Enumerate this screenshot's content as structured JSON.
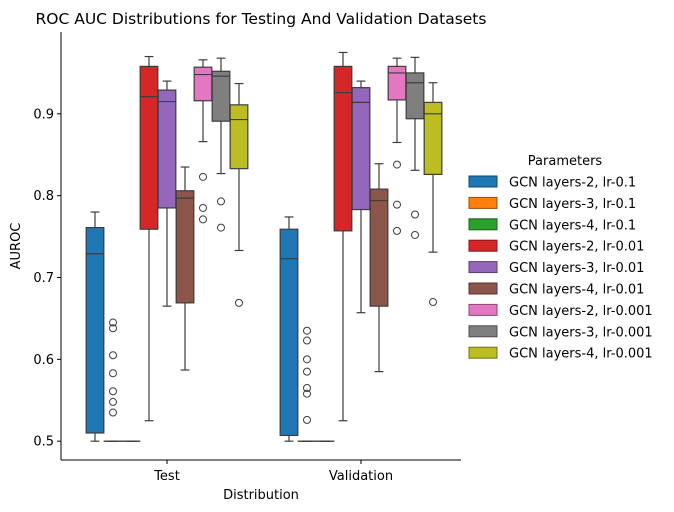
{
  "chart_data": {
    "type": "box",
    "title": "ROC AUC Distributions for Testing And Validation Datasets",
    "xlabel": "Distribution",
    "ylabel": "AUROC",
    "categories": [
      "Test",
      "Validation"
    ],
    "ylim": [
      0.477,
      1.0
    ],
    "yticks": [
      0.5,
      0.6,
      0.7,
      0.8,
      0.9
    ],
    "legend": {
      "title": "Parameters",
      "placement": "right"
    },
    "series": [
      {
        "name": "GCN layers-2, lr-0.1",
        "color": "#1f77b4",
        "boxes": [
          {
            "category": "Test",
            "whisker_low": 0.5,
            "q1": 0.51,
            "median": 0.729,
            "q3": 0.761,
            "whisker_high": 0.78,
            "outliers": []
          },
          {
            "category": "Validation",
            "whisker_low": 0.5,
            "q1": 0.507,
            "median": 0.723,
            "q3": 0.759,
            "whisker_high": 0.774,
            "outliers": []
          }
        ]
      },
      {
        "name": "GCN layers-3, lr-0.1",
        "color": "#ff7f0e",
        "boxes": [
          {
            "category": "Test",
            "whisker_low": 0.5,
            "q1": 0.5,
            "median": 0.5,
            "q3": 0.5,
            "whisker_high": 0.5,
            "outliers": [
              0.535,
              0.548,
              0.561,
              0.583,
              0.605,
              0.638,
              0.645
            ]
          },
          {
            "category": "Validation",
            "whisker_low": 0.5,
            "q1": 0.5,
            "median": 0.5,
            "q3": 0.5,
            "whisker_high": 0.5,
            "outliers": [
              0.526,
              0.558,
              0.565,
              0.585,
              0.6,
              0.623,
              0.635
            ]
          }
        ]
      },
      {
        "name": "GCN layers-4, lr-0.1",
        "color": "#2ca02c",
        "boxes": [
          {
            "category": "Test",
            "whisker_low": 0.5,
            "q1": 0.5,
            "median": 0.5,
            "q3": 0.5,
            "whisker_high": 0.5,
            "outliers": []
          },
          {
            "category": "Validation",
            "whisker_low": 0.5,
            "q1": 0.5,
            "median": 0.5,
            "q3": 0.5,
            "whisker_high": 0.5,
            "outliers": []
          }
        ]
      },
      {
        "name": "GCN layers-2, lr-0.01",
        "color": "#d62728",
        "boxes": [
          {
            "category": "Test",
            "whisker_low": 0.525,
            "q1": 0.759,
            "median": 0.921,
            "q3": 0.958,
            "whisker_high": 0.97,
            "outliers": []
          },
          {
            "category": "Validation",
            "whisker_low": 0.525,
            "q1": 0.757,
            "median": 0.926,
            "q3": 0.958,
            "whisker_high": 0.975,
            "outliers": []
          }
        ]
      },
      {
        "name": "GCN layers-3, lr-0.01",
        "color": "#9467bd",
        "boxes": [
          {
            "category": "Test",
            "whisker_low": 0.665,
            "q1": 0.785,
            "median": 0.915,
            "q3": 0.929,
            "whisker_high": 0.94,
            "outliers": []
          },
          {
            "category": "Validation",
            "whisker_low": 0.657,
            "q1": 0.783,
            "median": 0.914,
            "q3": 0.932,
            "whisker_high": 0.94,
            "outliers": []
          }
        ]
      },
      {
        "name": "GCN layers-4, lr-0.01",
        "color": "#8c564b",
        "boxes": [
          {
            "category": "Test",
            "whisker_low": 0.587,
            "q1": 0.669,
            "median": 0.797,
            "q3": 0.806,
            "whisker_high": 0.835,
            "outliers": []
          },
          {
            "category": "Validation",
            "whisker_low": 0.585,
            "q1": 0.665,
            "median": 0.794,
            "q3": 0.808,
            "whisker_high": 0.839,
            "outliers": []
          }
        ]
      },
      {
        "name": "GCN layers-2, lr-0.001",
        "color": "#e377c2",
        "boxes": [
          {
            "category": "Test",
            "whisker_low": 0.866,
            "q1": 0.916,
            "median": 0.948,
            "q3": 0.957,
            "whisker_high": 0.966,
            "outliers": [
              0.823,
              0.785,
              0.771
            ]
          },
          {
            "category": "Validation",
            "whisker_low": 0.865,
            "q1": 0.917,
            "median": 0.95,
            "q3": 0.958,
            "whisker_high": 0.968,
            "outliers": [
              0.838,
              0.789,
              0.757
            ]
          }
        ]
      },
      {
        "name": "GCN layers-3, lr-0.001",
        "color": "#7f7f7f",
        "boxes": [
          {
            "category": "Test",
            "whisker_low": 0.827,
            "q1": 0.891,
            "median": 0.946,
            "q3": 0.952,
            "whisker_high": 0.968,
            "outliers": [
              0.793,
              0.761
            ]
          },
          {
            "category": "Validation",
            "whisker_low": 0.831,
            "q1": 0.894,
            "median": 0.938,
            "q3": 0.95,
            "whisker_high": 0.969,
            "outliers": [
              0.777,
              0.752
            ]
          }
        ]
      },
      {
        "name": "GCN layers-4, lr-0.001",
        "color": "#bcbd22",
        "boxes": [
          {
            "category": "Test",
            "whisker_low": 0.733,
            "q1": 0.833,
            "median": 0.893,
            "q3": 0.911,
            "whisker_high": 0.937,
            "outliers": [
              0.669
            ]
          },
          {
            "category": "Validation",
            "whisker_low": 0.731,
            "q1": 0.826,
            "median": 0.9,
            "q3": 0.914,
            "whisker_high": 0.938,
            "outliers": [
              0.67
            ]
          }
        ]
      }
    ]
  }
}
